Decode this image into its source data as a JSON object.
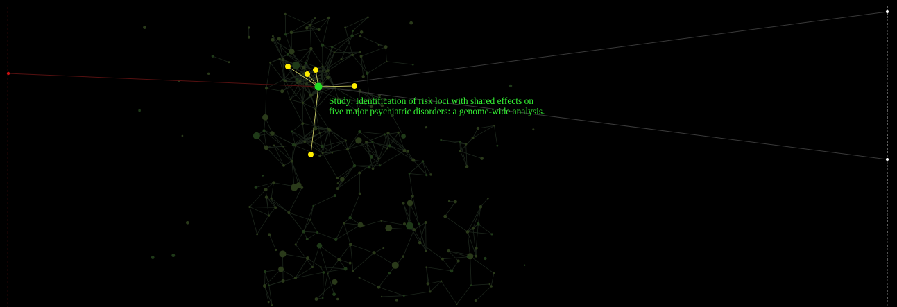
{
  "colors": {
    "background": "#000000",
    "focus_node": "#22dd22",
    "neighbor_node": "#ffee00",
    "neighbor_edge": "#cccc66",
    "label_text": "#33ee33",
    "left_axis_node": "#cc1111",
    "right_axis_node": "#ffffff",
    "faint_node": "#2a3a1a",
    "faint_edge": "#1c261c"
  },
  "tooltip": {
    "line1": "Study: Identification of risk loci with shared effects on",
    "line2": "five major psychiatric disorders: a genome-wide analysis."
  },
  "graph": {
    "focus_node": "study",
    "neighbor_count": 5,
    "left_axis_highlight_count": 1,
    "right_axis_highlight_count": 2
  }
}
